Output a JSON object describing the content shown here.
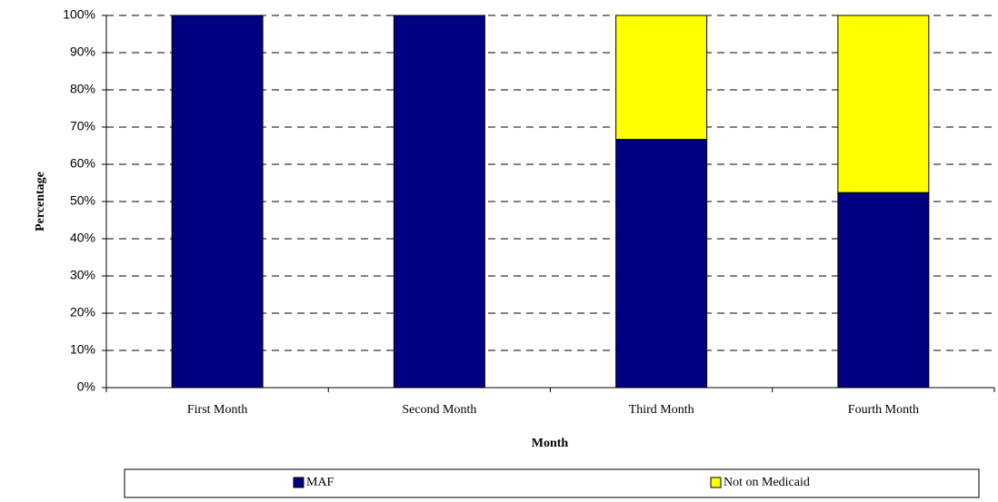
{
  "chart_data": {
    "type": "stacked_bar",
    "x_label": "Month",
    "y_label": "Percentage",
    "categories": [
      "First Month",
      "Second Month",
      "Third Month",
      "Fourth Month"
    ],
    "series": [
      {
        "name": "MAF",
        "color": "#000080",
        "values": [
          100,
          100,
          66.7,
          52.4
        ]
      },
      {
        "name": "Not on Medicaid",
        "color": "#ffff00",
        "values": [
          0,
          0,
          33.3,
          47.6
        ]
      }
    ],
    "ylim": [
      0,
      100
    ],
    "yticks": [
      {
        "value": 0,
        "label": "0%"
      },
      {
        "value": 10,
        "label": "10%"
      },
      {
        "value": 20,
        "label": "20%"
      },
      {
        "value": 30,
        "label": "30%"
      },
      {
        "value": 40,
        "label": "40%"
      },
      {
        "value": 50,
        "label": "50%"
      },
      {
        "value": 60,
        "label": "60%"
      },
      {
        "value": 70,
        "label": "70%"
      },
      {
        "value": 80,
        "label": "80%"
      },
      {
        "value": 90,
        "label": "90%"
      },
      {
        "value": 100,
        "label": "100%"
      }
    ],
    "grid": true,
    "legend": "bottom"
  }
}
